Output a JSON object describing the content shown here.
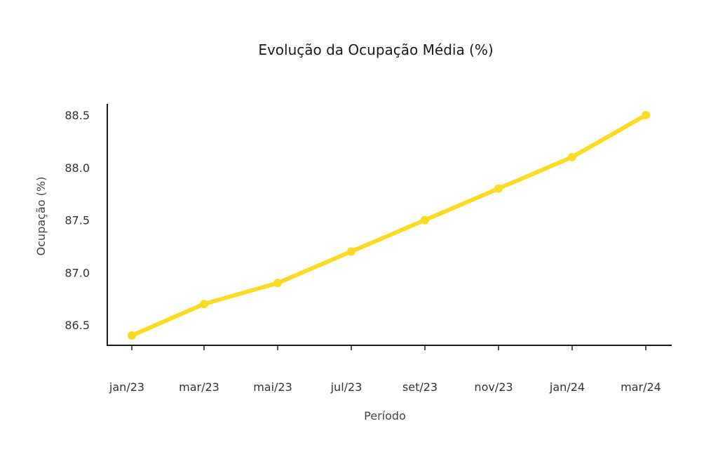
{
  "chart_data": {
    "type": "line",
    "title": "Evolução da Ocupação Média (%)",
    "xlabel": "Período",
    "ylabel": "Ocupação (%)",
    "categories": [
      "jan/23",
      "mar/23",
      "mai/23",
      "jul/23",
      "set/23",
      "nov/23",
      "jan/24",
      "mar/24"
    ],
    "series": [
      {
        "values": [
          86.4,
          86.7,
          86.9,
          87.2,
          87.5,
          87.8,
          88.1,
          88.5
        ]
      }
    ],
    "yticks": [
      "86.5",
      "87.0",
      "87.5",
      "88.0",
      "88.5"
    ],
    "ylim": [
      86.3,
      88.6
    ],
    "grid": false,
    "line_color": "#FDDA24"
  }
}
